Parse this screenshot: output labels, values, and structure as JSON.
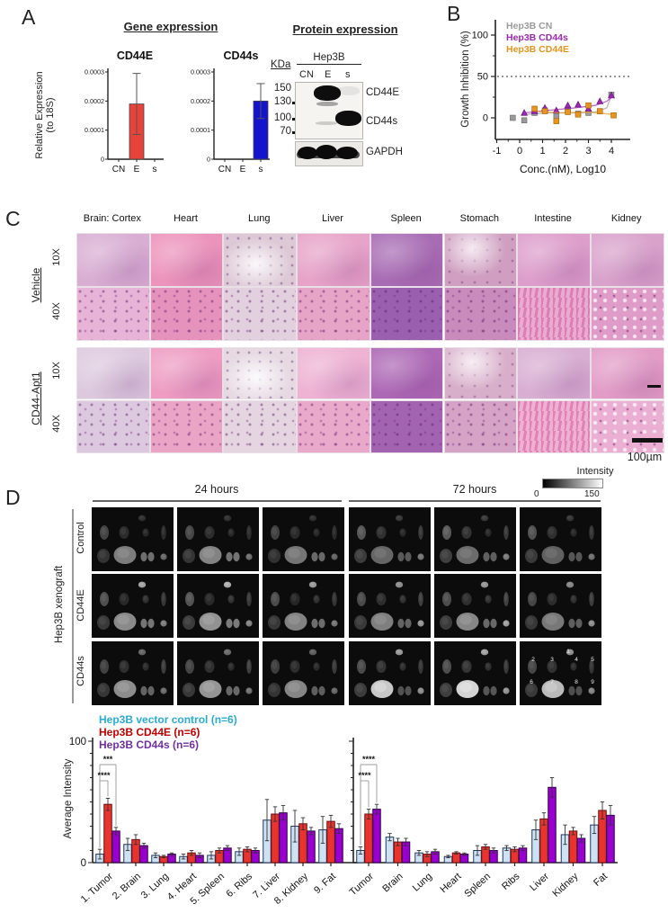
{
  "panels": {
    "a": "A",
    "b": "B",
    "c": "C",
    "d": "D"
  },
  "gene": {
    "title": "Gene expression",
    "ylabel1": "Relative Expression",
    "ylabel2": "(to 18S)"
  },
  "protein": {
    "title": "Protein expression",
    "kda": "KDa",
    "cell_line": "Hep3B",
    "lanes": [
      "CN",
      "E",
      "s"
    ],
    "markers": [
      "150",
      "130",
      "100",
      "70"
    ],
    "band_labels": [
      "CD44E",
      "CD44s"
    ],
    "loading_label": "GAPDH"
  },
  "histology": {
    "columns": [
      "Brain: Cortex",
      "Heart",
      "Lung",
      "Liver",
      "Spleen",
      "Stomach",
      "Intestine",
      "Kidney"
    ],
    "groups": [
      {
        "label": "Vehicle",
        "mags": [
          "10X",
          "40X"
        ]
      },
      {
        "label": "CD44-Apt1",
        "mags": [
          "10X",
          "40X"
        ]
      }
    ],
    "scale_label": "100µm",
    "row_colors": [
      [
        "#d9aed3",
        "#ec93bb",
        "#ddc9d6",
        "#e7a3c8",
        "#a86cb4",
        "#cf9ec0",
        "#dd9ecb",
        "#d9a2cb"
      ],
      [
        "#e7b3d6",
        "#e593bc",
        "#e3d0de",
        "#e6a5c7",
        "#9a5fae",
        "#c98bbc",
        "#e290c0",
        "#df9cc8"
      ],
      [
        "#dcc9de",
        "#ee9cc2",
        "#e6d9e2",
        "#eeb2d3",
        "#ad68b5",
        "#d8afca",
        "#d8aed2",
        "#e29cc6"
      ],
      [
        "#ddc9df",
        "#eaa5c6",
        "#e5d5e1",
        "#e8a9cb",
        "#a263b0",
        "#d5a3c6",
        "#e897c3",
        "#ecafd4"
      ]
    ]
  },
  "xenograft": {
    "side_label": "Hep3B xenograft",
    "times": [
      "24 hours",
      "72 hours"
    ],
    "rows": [
      "Control",
      "CD44E",
      "CD44s"
    ],
    "numbers": [
      "1",
      "2",
      "3",
      "4",
      "5",
      "6",
      "7",
      "8",
      "9"
    ],
    "colorbar": {
      "label": "Intensity",
      "min": "0",
      "max": "150"
    }
  },
  "chart_data": [
    {
      "id": "cd44e_expression",
      "type": "bar",
      "title": "CD44E",
      "categories": [
        "CN",
        "E",
        "s"
      ],
      "values": [
        0,
        0.00019,
        0
      ],
      "errors": [
        0,
        0.000105,
        0
      ],
      "ylim": [
        0,
        0.0003
      ],
      "yticks": [
        0,
        0.0001,
        0.0002,
        0.0003
      ],
      "ylabel": "Relative Expression (to 18S)",
      "bar_color": "#e8433a"
    },
    {
      "id": "cd44s_expression",
      "type": "bar",
      "title": "CD44s",
      "categories": [
        "CN",
        "E",
        "s"
      ],
      "values": [
        0,
        0,
        0.0002
      ],
      "errors": [
        0,
        0,
        6e-05
      ],
      "ylim": [
        0,
        0.0003
      ],
      "yticks": [
        0,
        0.0001,
        0.0002,
        0.0003
      ],
      "ylabel": "Relative Expression (to 18S)",
      "bar_color": "#1414cc"
    },
    {
      "id": "growth_inhibition",
      "type": "scatter",
      "xlabel": "Conc.(nM), Log10",
      "ylabel": "Growth Inhibition (%)",
      "xticks": [
        -1,
        0,
        1,
        2,
        3,
        4
      ],
      "yticks": [
        0,
        50,
        100
      ],
      "xlim": [
        -1.2,
        4.6
      ],
      "ylim": [
        -26,
        115
      ],
      "ref_line_y": 50,
      "legend_position": "top-left",
      "series": [
        {
          "name": "Hep3B CN",
          "color": "#9a9a9a",
          "edge": "#6f6f6f",
          "marker": "square",
          "x": [
            -0.3,
            0.2,
            0.65,
            1.1,
            1.6,
            2.1,
            2.55,
            3.0,
            3.5,
            4.0
          ],
          "y": [
            0,
            -3,
            6,
            9,
            2,
            10,
            5,
            6,
            8,
            28
          ],
          "trend": [
            [
              0.2,
              4
            ],
            [
              1.2,
              6
            ],
            [
              2.4,
              6
            ],
            [
              3.3,
              7
            ],
            [
              3.8,
              12
            ],
            [
              4.0,
              27
            ]
          ]
        },
        {
          "name": "Hep3B CD44s",
          "color": "#9c27b0",
          "edge": "#6a1580",
          "marker": "triangle",
          "x": [
            0.2,
            0.65,
            1.1,
            1.6,
            2.1,
            2.55,
            3.0,
            3.5,
            4.0
          ],
          "y": [
            6,
            8,
            12,
            9,
            15,
            16,
            11,
            20,
            27
          ],
          "trend": [
            [
              0.2,
              6
            ],
            [
              1.2,
              9
            ],
            [
              2.4,
              12
            ],
            [
              3.3,
              15
            ],
            [
              3.8,
              20
            ],
            [
              4.05,
              26
            ]
          ]
        },
        {
          "name": "Hep3B CD44E",
          "color": "#e8951e",
          "edge": "#b06a10",
          "marker": "square",
          "x": [
            0.65,
            1.1,
            1.6,
            2.1,
            2.55,
            3.0,
            3.5,
            4.1
          ],
          "y": [
            11,
            8,
            -4,
            7,
            4,
            15,
            8,
            3
          ],
          "trend": [
            [
              0.65,
              8
            ],
            [
              1.8,
              6
            ],
            [
              3.0,
              7
            ],
            [
              4.1,
              4
            ]
          ]
        }
      ]
    },
    {
      "id": "avg_intensity_24h",
      "type": "grouped_bar",
      "ylabel": "Average Intensity",
      "ylim": [
        0,
        100
      ],
      "yticks": [
        0,
        100
      ],
      "categories": [
        "1. Tumor",
        "2. Brain",
        "3. Lung",
        "4. Heart",
        "5. Spleen",
        "6. Ribs",
        "7. Liver",
        "8. Kidney",
        "9. Fat"
      ],
      "series": [
        {
          "name": "Hep3B vector control (n=6)",
          "color": "#cfe2f3",
          "edge": "#1f3864",
          "legend_color": "#29abd4",
          "values": [
            7,
            15,
            6,
            5,
            6,
            9,
            35,
            30,
            27
          ],
          "errors": [
            4,
            5,
            2,
            2,
            3,
            3,
            17,
            13,
            11
          ]
        },
        {
          "name": "Hep3B CD44E (n=6)",
          "color": "#e8332e",
          "edge": "#6b0f0d",
          "legend_color": "#c00000",
          "values": [
            48,
            19,
            5,
            8,
            10,
            11,
            40,
            32,
            34
          ],
          "errors": [
            5,
            4,
            1,
            2,
            2,
            2,
            6,
            5,
            5
          ]
        },
        {
          "name": "Hep3B CD44s (n=6)",
          "color": "#9900d0",
          "edge": "#30004a",
          "legend_color": "#7030a0",
          "values": [
            26,
            14,
            7,
            6,
            12,
            10,
            41,
            26,
            28
          ],
          "errors": [
            3,
            2,
            1,
            2,
            2,
            2,
            6,
            3,
            4
          ]
        }
      ],
      "significance": [
        {
          "label": "***",
          "bars": [
            0,
            2
          ]
        },
        {
          "label": "****",
          "bars": [
            0,
            1
          ]
        }
      ]
    },
    {
      "id": "avg_intensity_72h",
      "type": "grouped_bar",
      "ylabel": "Average Intensity",
      "ylim": [
        0,
        100
      ],
      "yticks": [
        0,
        100
      ],
      "categories": [
        "Tumor",
        "Brain",
        "Lung",
        "Heart",
        "Spleen",
        "Ribs",
        "Liver",
        "Kidney",
        "Fat"
      ],
      "series": [
        {
          "name": "Hep3B vector control (n=6)",
          "color": "#cfe2f3",
          "edge": "#1f3864",
          "legend_color": "#29abd4",
          "values": [
            10,
            21,
            8,
            5,
            10,
            12,
            27,
            23,
            31
          ],
          "errors": [
            3,
            3,
            2,
            1,
            4,
            2,
            8,
            8,
            7
          ]
        },
        {
          "name": "Hep3B CD44E (n=6)",
          "color": "#e8332e",
          "edge": "#6b0f0d",
          "legend_color": "#c00000",
          "values": [
            40,
            17,
            7,
            8,
            13,
            11,
            36,
            26,
            43
          ],
          "errors": [
            4,
            3,
            2,
            1,
            2,
            2,
            5,
            3,
            7
          ]
        },
        {
          "name": "Hep3B CD44s (n=6)",
          "color": "#9900d0",
          "edge": "#30004a",
          "legend_color": "#7030a0",
          "values": [
            44,
            17,
            9,
            7,
            10,
            12,
            62,
            20,
            39
          ],
          "errors": [
            4,
            3,
            2,
            1,
            2,
            2,
            8,
            3,
            8
          ]
        }
      ],
      "significance": [
        {
          "label": "****",
          "bars": [
            0,
            2
          ]
        },
        {
          "label": "****",
          "bars": [
            0,
            1
          ]
        }
      ]
    }
  ]
}
